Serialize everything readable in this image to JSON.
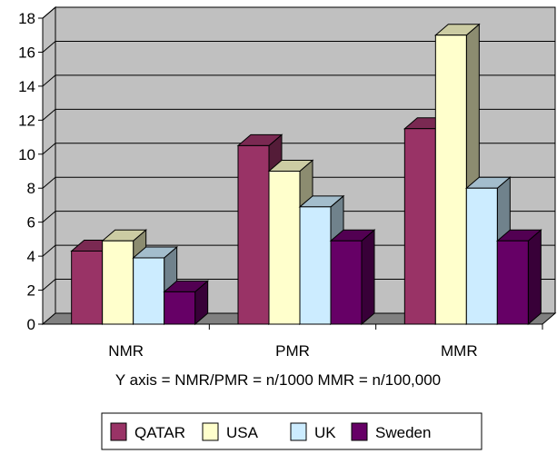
{
  "chart_data": {
    "type": "bar",
    "style": "3d-clustered-column",
    "categories": [
      "NMR",
      "PMR",
      "MMR"
    ],
    "series": [
      {
        "name": "QATAR",
        "values": [
          4.3,
          10.5,
          11.5
        ],
        "color": "#993366"
      },
      {
        "name": "USA",
        "values": [
          4.9,
          9.0,
          17.0
        ],
        "color": "#ffffcc"
      },
      {
        "name": "UK",
        "values": [
          3.9,
          6.9,
          8.0
        ],
        "color": "#ccecff"
      },
      {
        "name": "Sweden",
        "values": [
          1.9,
          4.9,
          4.9
        ],
        "color": "#660066"
      }
    ],
    "ylim": [
      0,
      18
    ],
    "yticks": [
      "0",
      "2",
      "4",
      "6",
      "8",
      "10",
      "12",
      "14",
      "16",
      "18"
    ],
    "grid": true,
    "legend_position": "bottom",
    "annotation": "Y axis = NMR/PMR = n/1000 MMR = n/100,000",
    "wall_color": "#c0c0c0",
    "floor_color": "#808080"
  }
}
